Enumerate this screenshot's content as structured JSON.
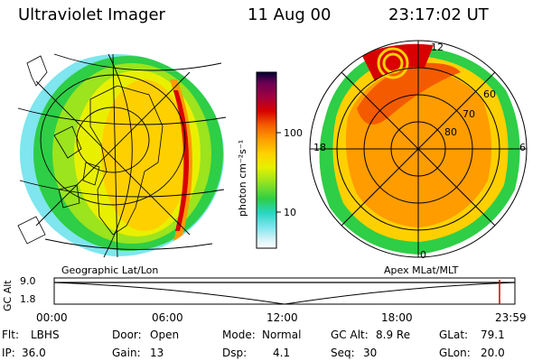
{
  "header": {
    "title": "Ultraviolet Imager",
    "date": "11 Aug 00",
    "time": "23:17:02 UT"
  },
  "left_panel": {
    "label": "Geographic Lat/Lon"
  },
  "right_panel": {
    "label": "Apex MLat/MLT",
    "mlt_labels": {
      "top": "12",
      "left": "18",
      "right": "6",
      "bottom": "0"
    },
    "lat_labels": [
      "60",
      "70",
      "80"
    ]
  },
  "colorbar": {
    "unit_label": "photon cm⁻²s⁻¹",
    "ticks": [
      "100",
      "10"
    ],
    "colors": [
      "#000033",
      "#6a0054",
      "#a00040",
      "#d80000",
      "#f45b00",
      "#ff9c00",
      "#ffd000",
      "#e8f000",
      "#9be41e",
      "#2ece46",
      "#27d7c3",
      "#7fe5ee",
      "#d6f2f8",
      "#ffffff"
    ]
  },
  "altitude_plot": {
    "ylabel": "GC Alt",
    "y_ticks": [
      "9.0",
      "1.8"
    ],
    "x_ticks": [
      "00:00",
      "06:00",
      "12:00",
      "18:00",
      "23:59"
    ],
    "marker_color": "#cc0000"
  },
  "status": {
    "flt_label": "Flt:",
    "flt_value": "LBHS",
    "door_label": "Door:",
    "door_value": "Open",
    "mode_label": "Mode:",
    "mode_value": "Normal",
    "gcalt_label": "GC Alt:",
    "gcalt_value": "8.9 Re",
    "glat_label": "GLat:",
    "glat_value": "79.1",
    "ip_label": "IP:",
    "ip_value": "36.0",
    "gain_label": "Gain:",
    "gain_value": "13",
    "dsp_label": "Dsp:",
    "dsp_value": "4.1",
    "seq_label": "Seq:",
    "seq_value": "30",
    "glon_label": "GLon:",
    "glon_value": "20.0"
  }
}
